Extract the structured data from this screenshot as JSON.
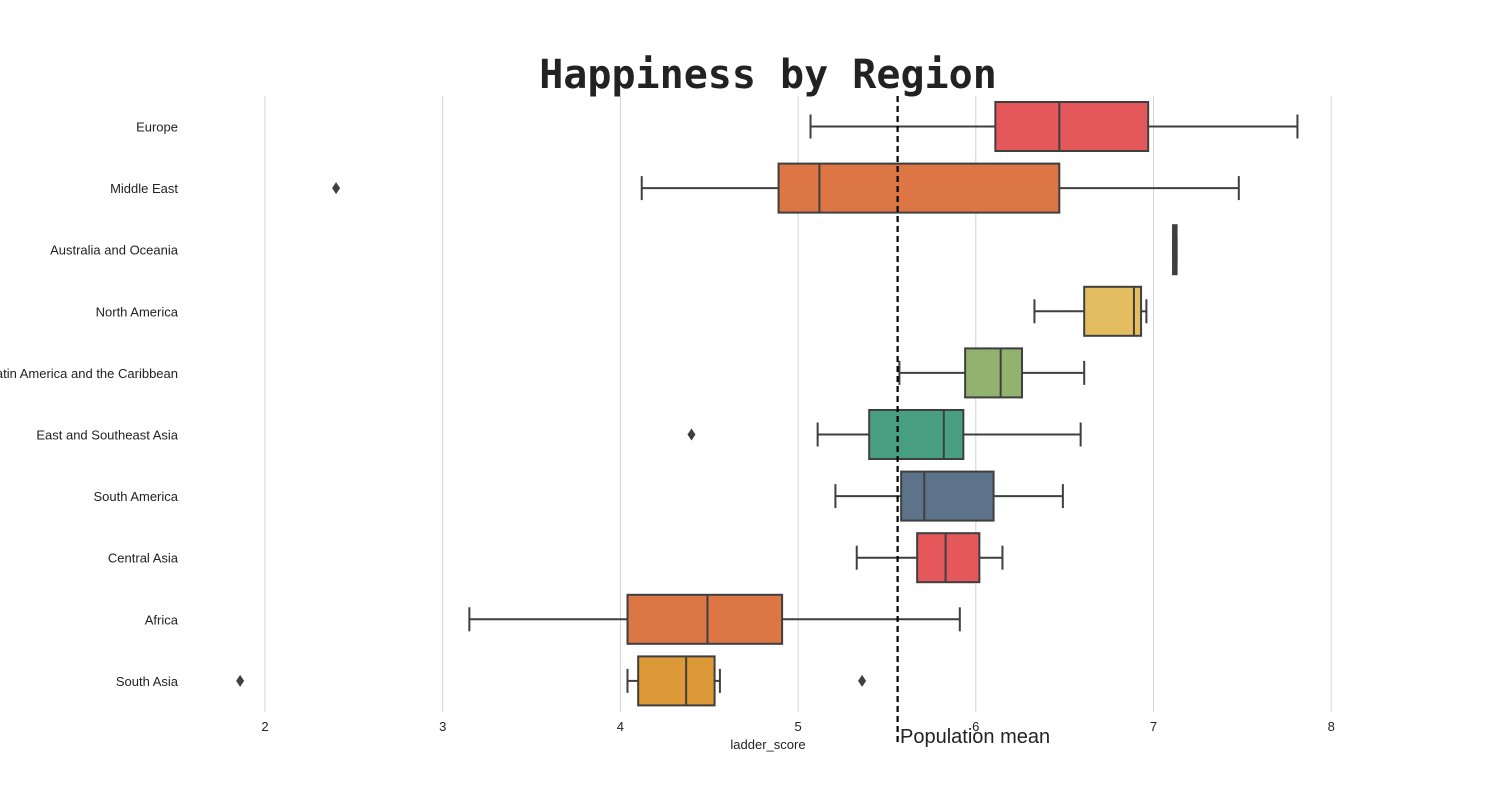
{
  "chart_data": {
    "type": "boxplot",
    "orientation": "horizontal",
    "title": "Happiness by Region",
    "xlabel": "ladder_score",
    "ylabel": "",
    "xlim": [
      1.5,
      8.5
    ],
    "xticks": [
      2,
      3,
      4,
      5,
      6,
      7,
      8
    ],
    "grid": "vertical",
    "reference_line": {
      "value": 5.56,
      "label": "Population mean",
      "style": "dashed"
    },
    "categories": [
      "Europe",
      "Middle East",
      "Australia and Oceania",
      "North America",
      "Latin America and the Caribbean",
      "East and Southeast Asia",
      "South America",
      "Central Asia",
      "Africa",
      "South Asia"
    ],
    "boxes": [
      {
        "region": "Europe",
        "whisker_low": 5.07,
        "q1": 6.11,
        "median": 6.47,
        "q3": 6.97,
        "whisker_high": 7.81,
        "outliers": [],
        "color": "#e4575a"
      },
      {
        "region": "Middle East",
        "whisker_low": 4.12,
        "q1": 4.89,
        "median": 5.12,
        "q3": 6.47,
        "whisker_high": 7.48,
        "outliers": [
          2.4
        ],
        "color": "#dc7745"
      },
      {
        "region": "Australia and Oceania",
        "whisker_low": 7.11,
        "q1": 7.11,
        "median": 7.12,
        "q3": 7.13,
        "whisker_high": 7.13,
        "outliers": [],
        "color": "#444444"
      },
      {
        "region": "North America",
        "whisker_low": 6.33,
        "q1": 6.61,
        "median": 6.89,
        "q3": 6.93,
        "whisker_high": 6.96,
        "outliers": [],
        "color": "#e4bd60"
      },
      {
        "region": "Latin America and the Caribbean",
        "whisker_low": 5.57,
        "q1": 5.94,
        "median": 6.14,
        "q3": 6.26,
        "whisker_high": 6.61,
        "outliers": [],
        "color": "#91b36f"
      },
      {
        "region": "East and Southeast Asia",
        "whisker_low": 5.11,
        "q1": 5.4,
        "median": 5.82,
        "q3": 5.93,
        "whisker_high": 6.59,
        "outliers": [
          4.4
        ],
        "color": "#489f82"
      },
      {
        "region": "South America",
        "whisker_low": 5.21,
        "q1": 5.58,
        "median": 5.71,
        "q3": 6.1,
        "whisker_high": 6.49,
        "outliers": [],
        "color": "#5d7389"
      },
      {
        "region": "Central Asia",
        "whisker_low": 5.33,
        "q1": 5.67,
        "median": 5.83,
        "q3": 6.02,
        "whisker_high": 6.15,
        "outliers": [],
        "color": "#e4575a"
      },
      {
        "region": "Africa",
        "whisker_low": 3.15,
        "q1": 4.04,
        "median": 4.49,
        "q3": 4.91,
        "whisker_high": 5.91,
        "outliers": [],
        "color": "#dc7745"
      },
      {
        "region": "South Asia",
        "whisker_low": 4.04,
        "q1": 4.1,
        "median": 4.37,
        "q3": 4.53,
        "whisker_high": 4.56,
        "outliers": [
          1.86,
          5.36
        ],
        "color": "#dd9837"
      }
    ]
  }
}
